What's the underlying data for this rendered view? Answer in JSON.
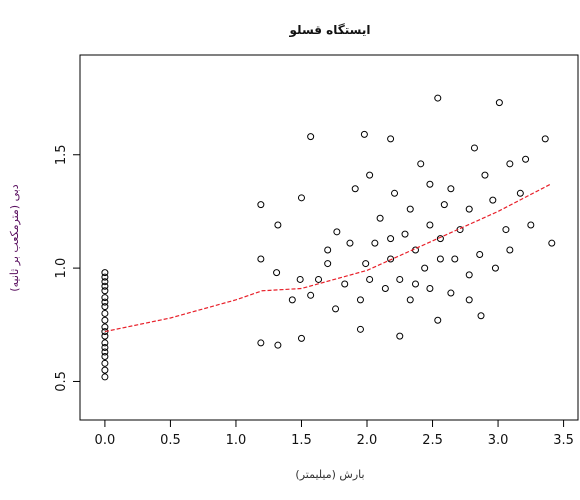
{
  "chart_data": {
    "type": "scatter",
    "title": "ایستگاه قسلو",
    "x_label": "بارش (میلیمتر)",
    "y_label": "دبی (مترمکعب بر ثانیه)",
    "xlim": [
      -0.19,
      3.61
    ],
    "ylim": [
      0.33,
      1.94
    ],
    "xticks": [
      {
        "value": 0,
        "label": "0.0"
      },
      0.5,
      {
        "value": 1,
        "label": "1.0"
      },
      1.5,
      {
        "value": 2,
        "label": "2.0"
      },
      2.5,
      {
        "value": 3,
        "label": "3.0"
      },
      3.5
    ],
    "yticks": [
      0.5,
      {
        "value": 1,
        "label": "1.0"
      },
      1.5
    ],
    "series": [
      {
        "kind": "points",
        "color": "#000000",
        "x": [
          0,
          0,
          0,
          0,
          0,
          0,
          0,
          0,
          0,
          0,
          0,
          0,
          0,
          0,
          0,
          0,
          0,
          0,
          0,
          0,
          2.54,
          3.01,
          1.57,
          1.98,
          2.18,
          3.36,
          2.82,
          1.19,
          1.32,
          1.5,
          1.19,
          1.31,
          1.19,
          1.32,
          1.5,
          3.41,
          2.54,
          2.87,
          1.95,
          2.25,
          1.43,
          1.57,
          1.77,
          2.02,
          2.41,
          2.64,
          2.96,
          3.17,
          3.25,
          3.09,
          2.71,
          2.33,
          2.1,
          1.87,
          1.7,
          1.63,
          1.83,
          1.99,
          2.06,
          2.18,
          2.25,
          2.37,
          2.44,
          2.56,
          2.67,
          2.78,
          2.86,
          2.98,
          3.06,
          2.78,
          2.59,
          2.48,
          2.29,
          2.14,
          1.95,
          1.76,
          2.33,
          2.48,
          2.64,
          2.78,
          2.21,
          1.91,
          2.48,
          2.9,
          3.09,
          3.21,
          1.7,
          2.18,
          1.49,
          2.02,
          2.37,
          2.56
        ],
        "values": [
          0.52,
          0.55,
          0.58,
          0.61,
          0.63,
          0.65,
          0.67,
          0.7,
          0.72,
          0.74,
          0.77,
          0.8,
          0.83,
          0.85,
          0.87,
          0.9,
          0.92,
          0.94,
          0.96,
          0.98,
          1.75,
          1.73,
          1.58,
          1.59,
          1.57,
          1.57,
          1.53,
          1.28,
          1.19,
          1.31,
          1.04,
          0.98,
          0.67,
          0.66,
          0.69,
          1.11,
          0.77,
          0.79,
          0.73,
          0.7,
          0.86,
          0.88,
          1.16,
          1.41,
          1.46,
          1.35,
          1.3,
          1.33,
          1.19,
          1.08,
          1.17,
          1.26,
          1.22,
          1.11,
          1.02,
          0.95,
          0.93,
          1.02,
          1.11,
          1.04,
          0.95,
          1.08,
          1,
          1.13,
          1.04,
          0.97,
          1.06,
          1,
          1.17,
          1.26,
          1.28,
          1.19,
          1.15,
          0.91,
          0.86,
          0.82,
          0.86,
          0.91,
          0.89,
          0.86,
          1.33,
          1.35,
          1.37,
          1.41,
          1.46,
          1.48,
          1.08,
          1.13,
          0.95,
          0.95,
          0.93,
          1.04
        ]
      },
      {
        "kind": "line",
        "color": "#e8202a",
        "x": [
          0,
          0.5,
          1.0,
          1.2,
          1.5,
          2.0,
          2.5,
          3.0,
          3.4
        ],
        "values": [
          0.72,
          0.78,
          0.86,
          0.9,
          0.91,
          0.99,
          1.12,
          1.25,
          1.37
        ]
      }
    ]
  }
}
